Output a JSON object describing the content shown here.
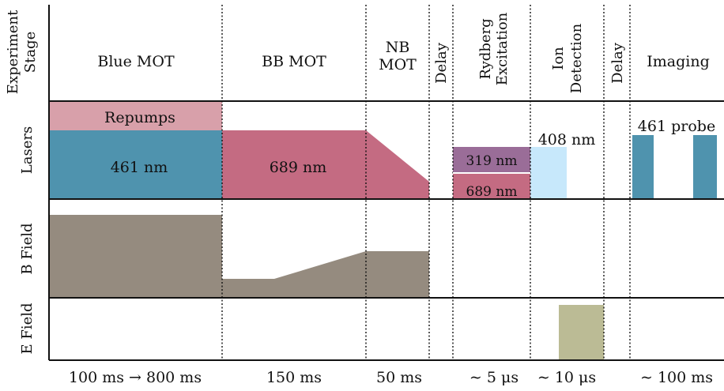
{
  "row_labels": {
    "stage_line1": "Experiment",
    "stage_line2": "Stage",
    "lasers": "Lasers",
    "b_field": "B Field",
    "e_field": "E Field"
  },
  "stages": {
    "blue_mot": "Blue MOT",
    "bb_mot": "BB MOT",
    "nb_mot_line1": "NB",
    "nb_mot_line2": "MOT",
    "delay1": "Delay",
    "rydberg_line1": "Rydberg",
    "rydberg_line2": "Excitation",
    "ion_line1": "Ion",
    "ion_line2": "Detection",
    "delay2": "Delay",
    "imaging": "Imaging"
  },
  "lasers": {
    "repumps": "Repumps",
    "l461": "461 nm",
    "l689_bb": "689 nm",
    "l319": "319 nm",
    "l689_ryd": "689 nm",
    "l408": "408 nm",
    "probe": "461 probe"
  },
  "durations": {
    "blue_mot": "100 ms → 800 ms",
    "bb_mot": "150 ms",
    "nb_mot": "50 ms",
    "rydberg": "∼ 5 μs",
    "ion": "∼ 10 μs",
    "imaging": "∼ 100 ms"
  },
  "colors": {
    "repumps": "#d8a0aa",
    "laser_461": "#4f93ae",
    "laser_689": "#c46b82",
    "laser_319": "#9a6d98",
    "laser_408": "#c7e8fb",
    "b_field": "#958b7f",
    "e_field": "#bbbb95"
  }
}
